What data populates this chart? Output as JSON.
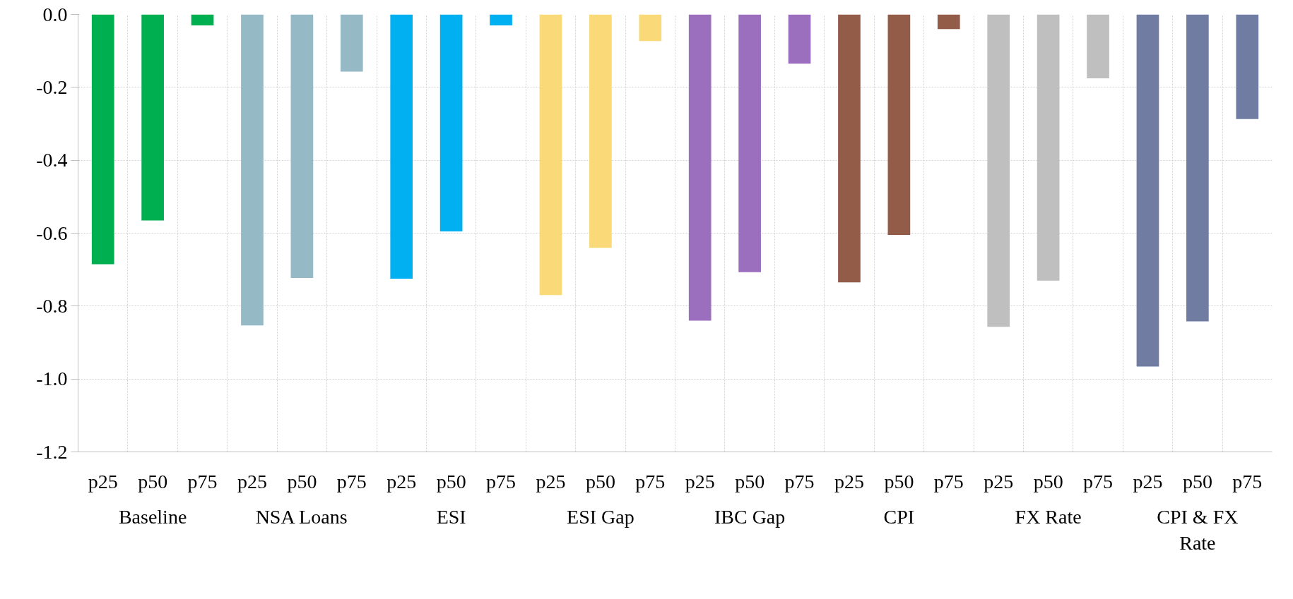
{
  "chart_data": {
    "type": "bar",
    "categories": [
      "p25",
      "p50",
      "p75",
      "p25",
      "p50",
      "p75",
      "p25",
      "p50",
      "p75",
      "p25",
      "p50",
      "p75",
      "p25",
      "p50",
      "p75",
      "p25",
      "p50",
      "p75",
      "p25",
      "p50",
      "p75",
      "p25",
      "p50",
      "p75"
    ],
    "values": [
      -0.685,
      -0.565,
      -0.03,
      -0.853,
      -0.723,
      -0.157,
      -0.725,
      -0.595,
      -0.03,
      -0.77,
      -0.64,
      -0.073,
      -0.84,
      -0.707,
      -0.135,
      -0.735,
      -0.605,
      -0.04,
      -0.857,
      -0.73,
      -0.175,
      -0.966,
      -0.842,
      -0.287
    ],
    "colors": [
      "#00b050",
      "#00b050",
      "#00b050",
      "#95bac5",
      "#95bac5",
      "#95bac5",
      "#00b0f0",
      "#00b0f0",
      "#00b0f0",
      "#f9d978",
      "#f9d978",
      "#f9d978",
      "#9b6fbe",
      "#9b6fbe",
      "#9b6fbe",
      "#935c48",
      "#935c48",
      "#935c48",
      "#bfbfbf",
      "#bfbfbf",
      "#bfbfbf",
      "#717ca3",
      "#717ca3",
      "#717ca3"
    ],
    "annotations": [
      "Baseline",
      "NSA Loans",
      "ESI",
      "ESI Gap",
      "IBC Gap",
      "CPI",
      "FX Rate",
      "CPI & FX Rate"
    ],
    "ylim": [
      -1.2,
      0
    ],
    "yticks": [
      {
        "value": 0,
        "label": "0.0"
      },
      -0.2,
      -0.4,
      -0.6,
      -0.8,
      {
        "value": -1.0,
        "label": "-1.0"
      },
      -1.2
    ],
    "grid": true
  }
}
